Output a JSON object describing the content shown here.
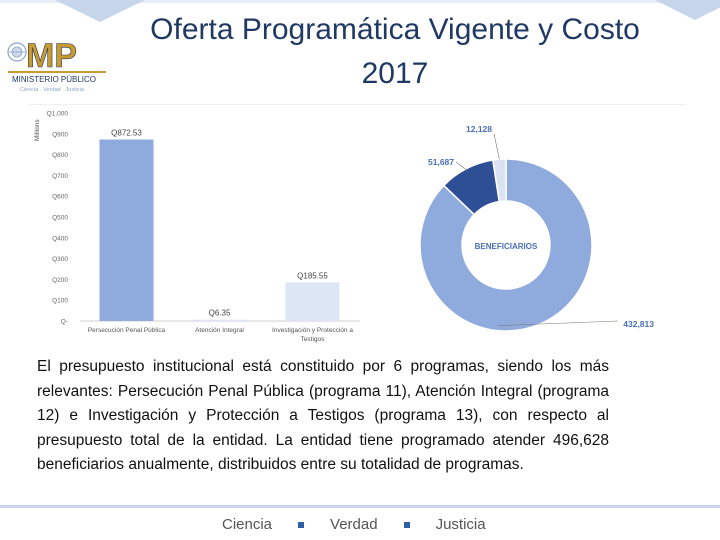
{
  "title": "Oferta Programática Vigente y Costo 2017",
  "logo": {
    "letters": "MP",
    "line1": "MINISTERIO PÚBLICO",
    "line2": "Ciencia · Verdad · Justicia"
  },
  "colors": {
    "title": "#1f3864",
    "bar_light": "#dce6f5",
    "bar_main": "#8faadc",
    "donut_main": "#8faadc",
    "donut_dark": "#2e4f96",
    "donut_light": "#d9e2f0",
    "accent": "#2e5fa8"
  },
  "bar_chart": {
    "type": "bar",
    "unit_label": "Millions",
    "yticks": [
      "Q1,000",
      "Q900",
      "Q800",
      "Q700",
      "Q600",
      "Q500",
      "Q400",
      "Q300",
      "Q200",
      "Q100",
      "Q-"
    ],
    "ylim": [
      0,
      1000
    ],
    "categories": [
      "Persecución Penal Pública",
      "Atención Integral",
      "Investigación y Protección a Testigos"
    ],
    "values": [
      872.53,
      6.35,
      185.55
    ],
    "value_labels": [
      "Q872.53",
      "Q6.35",
      "Q185.55"
    ]
  },
  "donut_chart": {
    "type": "pie",
    "center_label": "BENEFICIARIOS",
    "values": [
      432813,
      51687,
      12128
    ],
    "labels": [
      "432,813",
      "51,687",
      "12,128"
    ]
  },
  "chart_data": [
    {
      "type": "bar",
      "title": "",
      "ylabel": "Millions",
      "categories": [
        "Persecución Penal Pública",
        "Atención Integral",
        "Investigación y Protección a Testigos"
      ],
      "values": [
        872.53,
        6.35,
        185.55
      ],
      "ylim": [
        0,
        1000
      ]
    },
    {
      "type": "pie",
      "title": "BENEFICIARIOS",
      "labels": [
        "432,813",
        "51,687",
        "12,128"
      ],
      "values": [
        432813,
        51687,
        12128
      ]
    }
  ],
  "description": "El presupuesto institucional está constituido por 6 programas, siendo los más relevantes: Persecución Penal Pública (programa 11), Atención Integral (programa 12) e Investigación y Protección a Testigos (programa 13), con respecto al presupuesto total de la entidad.  La entidad tiene programado atender 496,628 beneficiarios anualmente, distribuidos entre su totalidad de programas.",
  "footer": {
    "items": [
      "Ciencia",
      "Verdad",
      "Justicia"
    ]
  }
}
